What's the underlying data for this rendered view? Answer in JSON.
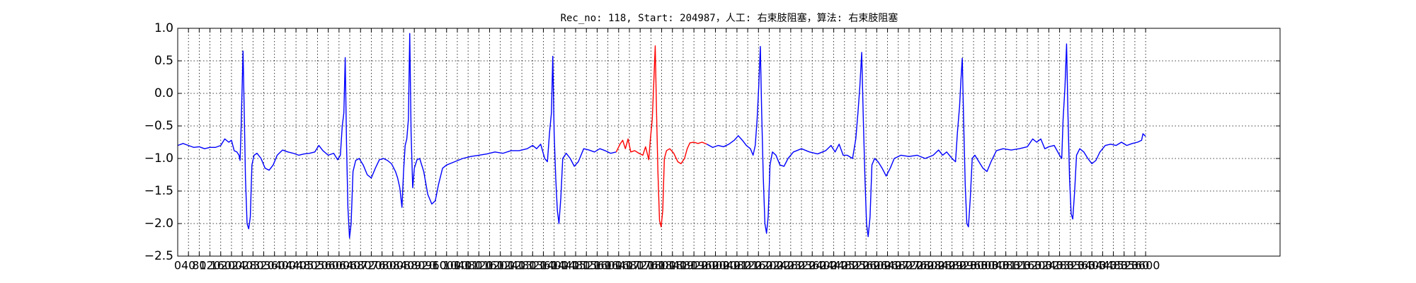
{
  "chart_data": {
    "type": "line",
    "title": "Rec_no: 118, Start: 204987，人工: 右束肢阻塞，算法: 右束肢阻塞",
    "xlim": [
      0,
      4100
    ],
    "xticks": [
      0,
      40,
      80,
      120,
      160,
      200,
      240,
      280,
      320,
      360,
      400,
      440,
      480,
      520,
      560,
      600,
      640,
      680,
      720,
      760,
      800,
      840,
      880,
      920,
      960,
      1000,
      1040,
      1080,
      1120,
      1160,
      1200,
      1240,
      1280,
      1320,
      1360,
      1400,
      1440,
      1480,
      1520,
      1560,
      1600,
      1640,
      1680,
      1720,
      1760,
      1800,
      1840,
      1880,
      1920,
      1960,
      2000,
      2040,
      2080,
      2120,
      2160,
      2200,
      2240,
      2280,
      2320,
      2360,
      2400,
      2440,
      2480,
      2520,
      2560,
      2600,
      2640,
      2680,
      2720,
      2760,
      2800,
      2840,
      2880,
      2920,
      2960,
      3000,
      3040,
      3080,
      3120,
      3160,
      3200,
      3240,
      3280,
      3320,
      3360,
      3400,
      3440,
      3480,
      3520,
      3560,
      3600
    ],
    "ylim": [
      -2.5,
      1.0
    ],
    "yticks": [
      {
        "value": -2.5,
        "label": "−2.5"
      },
      {
        "value": -2.0,
        "label": "−2.0"
      },
      {
        "value": -1.5,
        "label": "−1.5"
      },
      {
        "value": -1.0,
        "label": "−1.0"
      },
      {
        "value": -0.5,
        "label": "−0.5"
      },
      {
        "value": 0.0,
        "label": "0.0"
      },
      {
        "value": 0.5,
        "label": "0.5"
      },
      {
        "value": 1.0,
        "label": "1.0"
      }
    ],
    "grid": true,
    "series": [
      {
        "color": "#0000ff",
        "x": [
          0,
          20,
          40,
          60,
          80,
          100,
          120,
          140,
          160,
          175,
          190,
          200,
          210,
          220,
          228,
          232,
          236,
          243,
          248,
          252,
          258,
          264,
          270,
          276,
          284,
          295,
          310,
          325,
          340,
          355,
          370,
          390,
          410,
          430,
          450,
          470,
          490,
          510,
          525,
          540,
          560,
          580,
          595,
          605,
          612,
          618,
          623,
          628,
          633,
          639,
          645,
          652,
          662,
          675,
          690,
          705,
          720,
          735,
          750,
          765,
          780,
          795,
          810,
          818,
          826,
          834,
          840,
          846,
          852,
          858,
          863,
          868,
          874,
          880,
          890,
          900,
          915,
          930,
          945,
          958,
          970,
          985,
          1000,
          1030,
          1060,
          1090,
          1120,
          1150,
          1180,
          1210,
          1240,
          1270,
          1300,
          1320,
          1335,
          1350,
          1365,
          1375,
          1383,
          1390,
          1395,
          1400,
          1406,
          1412,
          1418,
          1425,
          1432,
          1445,
          1460,
          1475,
          1490,
          1510,
          1530,
          1550,
          1570,
          1590,
          1610,
          1631
        ],
        "values": [
          -0.8,
          -0.77,
          -0.8,
          -0.83,
          -0.82,
          -0.85,
          -0.83,
          -0.83,
          -0.8,
          -0.7,
          -0.75,
          -0.72,
          -0.88,
          -0.9,
          -0.95,
          -1.03,
          -0.5,
          0.65,
          -0.4,
          -1.3,
          -2.0,
          -2.08,
          -1.9,
          -1.1,
          -0.95,
          -0.92,
          -1.0,
          -1.15,
          -1.18,
          -1.1,
          -0.95,
          -0.87,
          -0.9,
          -0.92,
          -0.95,
          -0.93,
          -0.92,
          -0.9,
          -0.8,
          -0.88,
          -0.95,
          -0.92,
          -1.02,
          -0.95,
          -0.5,
          -0.3,
          0.55,
          -0.8,
          -1.75,
          -2.22,
          -2.0,
          -1.2,
          -1.03,
          -1.0,
          -1.1,
          -1.25,
          -1.3,
          -1.15,
          -1.02,
          -1.0,
          -1.03,
          -1.08,
          -1.2,
          -1.3,
          -1.45,
          -1.75,
          -1.2,
          -0.8,
          -0.7,
          -0.4,
          0.92,
          -0.6,
          -1.45,
          -1.15,
          -1.02,
          -1.0,
          -1.2,
          -1.55,
          -1.7,
          -1.65,
          -1.4,
          -1.15,
          -1.1,
          -1.05,
          -1.0,
          -0.97,
          -0.95,
          -0.93,
          -0.9,
          -0.92,
          -0.88,
          -0.88,
          -0.85,
          -0.8,
          -0.85,
          -0.78,
          -1.0,
          -1.05,
          -0.6,
          -0.3,
          0.57,
          -0.6,
          -1.3,
          -1.8,
          -2.0,
          -1.6,
          -1.0,
          -0.92,
          -1.0,
          -1.12,
          -1.05,
          -0.85,
          -0.87,
          -0.9,
          -0.85,
          -0.88,
          -0.92,
          -0.9
        ]
      },
      {
        "color": "#ff0000",
        "x": [
          1631,
          1645,
          1655,
          1665,
          1675,
          1685,
          1700,
          1715,
          1730,
          1740,
          1748,
          1752,
          1758,
          1765,
          1770,
          1776,
          1781,
          1786,
          1792,
          1798,
          1804,
          1810,
          1818,
          1830,
          1845,
          1860,
          1872,
          1885,
          1895,
          1905,
          1920,
          1935,
          1950,
          1968
        ],
        "values": [
          -0.9,
          -0.78,
          -0.72,
          -0.85,
          -0.7,
          -0.9,
          -0.88,
          -0.92,
          -0.95,
          -0.82,
          -0.95,
          -1.02,
          -0.7,
          -0.4,
          0.1,
          0.73,
          -0.3,
          -1.2,
          -1.95,
          -2.05,
          -1.8,
          -1.0,
          -0.88,
          -0.85,
          -0.92,
          -1.05,
          -1.08,
          -1.0,
          -0.85,
          -0.76,
          -0.75,
          -0.77,
          -0.75,
          -0.78
        ]
      },
      {
        "color": "#0000ff",
        "x": [
          1968,
          1990,
          2010,
          2030,
          2050,
          2070,
          2085,
          2100,
          2115,
          2130,
          2140,
          2148,
          2155,
          2161,
          2167,
          2172,
          2178,
          2184,
          2190,
          2196,
          2203,
          2212,
          2225,
          2240,
          2255,
          2270,
          2290,
          2320,
          2350,
          2380,
          2410,
          2430,
          2445,
          2460,
          2475,
          2490,
          2510,
          2522,
          2530,
          2537,
          2544,
          2550,
          2556,
          2562,
          2568,
          2575,
          2582,
          2592,
          2605,
          2620,
          2635,
          2650,
          2665,
          2690,
          2720,
          2750,
          2780,
          2810,
          2830,
          2845,
          2860,
          2880,
          2893,
          2900,
          2908,
          2913,
          2918,
          2923,
          2929,
          2935,
          2941,
          2948,
          2955,
          2965,
          2980,
          2995,
          3010,
          3025,
          3045,
          3070,
          3100,
          3130,
          3160,
          3180,
          3195,
          3210,
          3225,
          3240,
          3260,
          3280,
          3288,
          3293,
          3300,
          3306,
          3311,
          3317,
          3323,
          3329,
          3336,
          3343,
          3355,
          3370,
          3385,
          3400,
          3415,
          3430,
          3450,
          3470,
          3490,
          3510,
          3530,
          3550,
          3570,
          3585,
          3590,
          3600
        ],
        "values": [
          -0.78,
          -0.83,
          -0.8,
          -0.82,
          -0.78,
          -0.72,
          -0.65,
          -0.72,
          -0.8,
          -0.85,
          -0.95,
          -0.8,
          -0.4,
          0.1,
          0.72,
          -0.3,
          -1.3,
          -2.0,
          -2.15,
          -1.9,
          -1.1,
          -0.9,
          -0.95,
          -1.1,
          -1.12,
          -1.0,
          -0.9,
          -0.85,
          -0.9,
          -0.93,
          -0.88,
          -0.8,
          -0.9,
          -0.78,
          -0.95,
          -0.95,
          -1.0,
          -0.7,
          -0.3,
          0.1,
          0.63,
          -0.4,
          -1.3,
          -2.0,
          -2.2,
          -1.9,
          -1.1,
          -1.0,
          -1.05,
          -1.15,
          -1.27,
          -1.15,
          -1.0,
          -0.95,
          -0.97,
          -0.95,
          -1.0,
          -0.95,
          -0.87,
          -0.95,
          -0.9,
          -1.0,
          -1.05,
          -0.6,
          -0.2,
          0.2,
          0.54,
          -0.4,
          -1.4,
          -2.0,
          -2.05,
          -1.6,
          -1.0,
          -0.95,
          -1.05,
          -1.15,
          -1.2,
          -1.05,
          -0.88,
          -0.85,
          -0.87,
          -0.85,
          -0.82,
          -0.7,
          -0.75,
          -0.7,
          -0.85,
          -0.82,
          -0.8,
          -0.95,
          -1.0,
          -0.4,
          0.1,
          0.76,
          -0.3,
          -1.3,
          -1.85,
          -1.93,
          -1.5,
          -0.95,
          -0.85,
          -0.9,
          -1.0,
          -1.08,
          -1.03,
          -0.9,
          -0.8,
          -0.78,
          -0.8,
          -0.75,
          -0.8,
          -0.77,
          -0.75,
          -0.72,
          -0.62,
          -0.66
        ]
      }
    ]
  }
}
